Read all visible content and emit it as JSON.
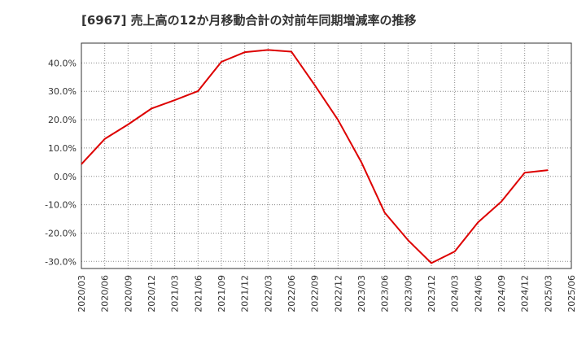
{
  "chart_data": {
    "type": "line",
    "title": "[6967]  売上高の12か月移動合計の対前年同期増減率の推移",
    "xlabel": "",
    "ylabel": "",
    "x": [
      "2020/03",
      "2020/06",
      "2020/09",
      "2020/12",
      "2021/03",
      "2021/06",
      "2021/09",
      "2021/12",
      "2022/03",
      "2022/06",
      "2022/09",
      "2022/12",
      "2023/03",
      "2023/06",
      "2023/09",
      "2023/12",
      "2024/03",
      "2024/06",
      "2024/09",
      "2024/12",
      "2025/03",
      "2025/06"
    ],
    "ylim": [
      -32.5,
      47.0
    ],
    "yticks": [
      40,
      30,
      20,
      10,
      0,
      -10,
      -20,
      -30
    ],
    "ytick_labels": [
      "40.0%",
      "30.0%",
      "20.0%",
      "10.0%",
      "0.0%",
      "-10.0%",
      "-20.0%",
      "-30.0%"
    ],
    "grid": true,
    "series": [
      {
        "name": "増減率",
        "color": "#dd0000",
        "values": [
          4.3,
          13.2,
          18.3,
          23.9,
          26.9,
          30.1,
          40.4,
          43.8,
          44.6,
          44.0,
          32.2,
          19.9,
          5.0,
          -12.8,
          -22.5,
          -30.6,
          -26.5,
          -16.2,
          -8.9,
          1.3,
          2.2,
          null
        ]
      }
    ]
  }
}
